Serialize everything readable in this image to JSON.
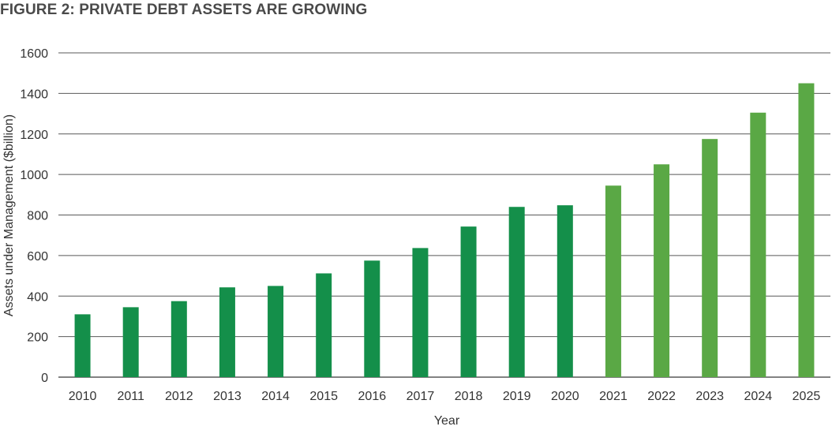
{
  "chart_data": {
    "type": "bar",
    "title": "FIGURE 2: PRIVATE DEBT ASSETS ARE GROWING",
    "xlabel": "Year",
    "ylabel": "Assets under Management ($billion)",
    "categories": [
      "2010",
      "2011",
      "2012",
      "2013",
      "2014",
      "2015",
      "2016",
      "2017",
      "2018",
      "2019",
      "2020",
      "2021",
      "2022",
      "2023",
      "2024",
      "2025"
    ],
    "values": [
      310,
      345,
      375,
      443,
      450,
      512,
      575,
      637,
      743,
      840,
      848,
      945,
      1050,
      1175,
      1305,
      1450
    ],
    "ylim": [
      0,
      1600
    ],
    "yticks": [
      0,
      200,
      400,
      600,
      800,
      1000,
      1200,
      1400,
      1600
    ],
    "grid": true,
    "colors": {
      "historical": "#148f4a",
      "projected": "#5aa845",
      "grid": "#595959"
    },
    "projected_from": "2021"
  }
}
